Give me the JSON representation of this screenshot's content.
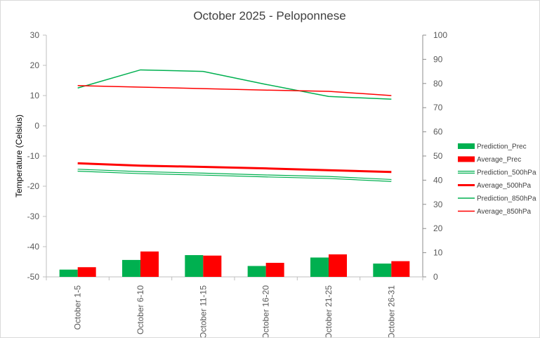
{
  "chart_data": {
    "type": "bar+line",
    "title": "October 2025 - Peloponnese",
    "categories": [
      "October 1-5",
      "October 6-10",
      "October 11-15",
      "October 16-20",
      "October 21-25",
      "October 26-31"
    ],
    "y_left": {
      "label": "Temperature (Celsius)",
      "min": -50,
      "max": 30,
      "step": 10
    },
    "y_right": {
      "label": "",
      "min": 0,
      "max": 100,
      "step": 10
    },
    "grid": false,
    "legend_position": "right",
    "series": [
      {
        "name": "Prediction_Prec",
        "type": "bar",
        "axis": "right",
        "color": "#00b050",
        "values": [
          3,
          7,
          9,
          4.5,
          8,
          5.5
        ]
      },
      {
        "name": "Average_Prec",
        "type": "bar",
        "axis": "right",
        "color": "#ff0000",
        "values": [
          4,
          10.5,
          8.8,
          5.8,
          9.3,
          6.5
        ]
      },
      {
        "name": "Prediction_500hPa",
        "type": "line",
        "style": "double",
        "axis": "left",
        "color": "#00b050",
        "values": [
          -14.7,
          -15.5,
          -16.0,
          -16.6,
          -17.1,
          -18.1
        ]
      },
      {
        "name": "Average_500hPa",
        "type": "line",
        "style": "thick",
        "axis": "left",
        "color": "#ff0000",
        "values": [
          -12.4,
          -13.2,
          -13.6,
          -14.1,
          -14.7,
          -15.3
        ]
      },
      {
        "name": "Prediction_850hPa",
        "type": "line",
        "style": "thin",
        "axis": "left",
        "color": "#00b050",
        "values": [
          12.5,
          18.5,
          18.0,
          13.7,
          9.7,
          8.8
        ]
      },
      {
        "name": "Average_850hPa",
        "type": "line",
        "style": "thin",
        "axis": "left",
        "color": "#ff0000",
        "values": [
          13.3,
          12.8,
          12.3,
          11.8,
          11.4,
          10.0
        ]
      }
    ]
  }
}
